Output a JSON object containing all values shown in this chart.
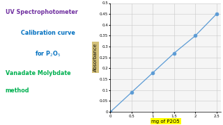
{
  "x_data": [
    0,
    0.5,
    1.0,
    1.5,
    2.0,
    2.5
  ],
  "y_data": [
    0,
    0.09,
    0.18,
    0.27,
    0.35,
    0.45
  ],
  "xlabel": "mg of P2O5",
  "ylabel": "Absorbance",
  "xlim": [
    0,
    2.6
  ],
  "ylim": [
    0,
    0.5
  ],
  "xticks": [
    0,
    0.5,
    1.0,
    1.5,
    2.0,
    2.5
  ],
  "yticks": [
    0,
    0.05,
    0.1,
    0.15,
    0.2,
    0.25,
    0.3,
    0.35,
    0.4,
    0.45,
    0.5
  ],
  "line_color": "#5b9bd5",
  "marker_color": "#5b9bd5",
  "bg_color": "#ffffff",
  "plot_bg_color": "#f5f5f5",
  "text_lines": [
    "UV Spectrophotometer",
    "Calibration curve",
    "for P$_2$O$_5$",
    "Vanadate Molybdate",
    "method"
  ],
  "text_colors": [
    "#7030a0",
    "#0070c0",
    "#0070c0",
    "#00b050",
    "#00b050"
  ],
  "text_aligns": [
    "left",
    "center",
    "center",
    "left",
    "left"
  ],
  "xlabel_bg": "#ffff00",
  "ylabel_bg": "#d4c17a",
  "grid_color": "#c8c8c8",
  "grid_minor_color": "#dcdcdc",
  "marker_size": 3.5,
  "line_width": 0.9
}
